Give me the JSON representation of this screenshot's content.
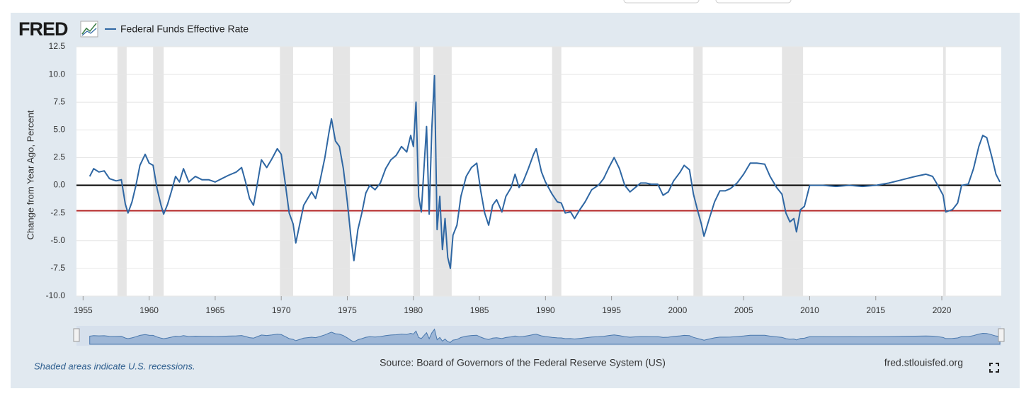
{
  "chart_data": {
    "type": "line",
    "logo": "FRED",
    "ylabel": "Change from Year Ago, Percent",
    "source": "Source: Board of Governors of the Federal Reserve System (US)",
    "note": "Shaded areas indicate U.S. recessions.",
    "site": "fred.stlouisfed.org",
    "xlim": [
      1954.5,
      2024.5
    ],
    "xticks": [
      1955,
      1960,
      1965,
      1970,
      1975,
      1980,
      1985,
      1990,
      1995,
      2000,
      2005,
      2010,
      2015,
      2020
    ],
    "ylim": [
      -10,
      12.5
    ],
    "yticks": [
      12.5,
      {
        "value": 10,
        "label": "10.0"
      },
      7.5,
      {
        "value": 5,
        "label": "5.0"
      },
      2.5,
      {
        "value": 0,
        "label": "0.0"
      },
      -2.5,
      {
        "value": -5,
        "label": "-5.0"
      },
      -7.5,
      {
        "value": -10,
        "label": "-10.0"
      }
    ],
    "grid": true,
    "recessions": [
      [
        1957.6,
        1958.3
      ],
      [
        1960.3,
        1961.1
      ],
      [
        1969.9,
        1970.9
      ],
      [
        1973.9,
        1975.2
      ],
      [
        1980.0,
        1980.5
      ],
      [
        1981.5,
        1982.9
      ],
      [
        1990.5,
        1991.2
      ],
      [
        2001.2,
        2001.9
      ],
      [
        2007.9,
        2009.5
      ],
      [
        2020.1,
        2020.3
      ]
    ],
    "reference_lines": [
      {
        "value": 0,
        "color": "#000000"
      },
      {
        "value": -2.3,
        "color": "#b22222"
      }
    ],
    "x": [
      1955.5,
      1955.8,
      1956.2,
      1956.6,
      1957,
      1957.5,
      1957.9,
      1958.2,
      1958.4,
      1958.7,
      1959,
      1959.3,
      1959.7,
      1960,
      1960.3,
      1960.6,
      1960.9,
      1961.1,
      1961.4,
      1961.7,
      1962,
      1962.3,
      1962.6,
      1963,
      1963.5,
      1964,
      1964.5,
      1965,
      1965.5,
      1966,
      1966.6,
      1967,
      1967.3,
      1967.6,
      1967.9,
      1968.2,
      1968.5,
      1968.9,
      1969.3,
      1969.7,
      1970,
      1970.3,
      1970.6,
      1970.9,
      1971.1,
      1971.4,
      1971.7,
      1972,
      1972.3,
      1972.6,
      1972.9,
      1973.3,
      1973.6,
      1973.8,
      1974.1,
      1974.4,
      1974.7,
      1975,
      1975.3,
      1975.5,
      1975.8,
      1976.1,
      1976.4,
      1976.7,
      1977.1,
      1977.5,
      1977.9,
      1978.3,
      1978.7,
      1979.1,
      1979.5,
      1979.8,
      1980,
      1980.2,
      1980.4,
      1980.6,
      1980.8,
      1981,
      1981.2,
      1981.4,
      1981.6,
      1981.8,
      1982,
      1982.2,
      1982.4,
      1982.6,
      1982.8,
      1983,
      1983.3,
      1983.6,
      1984,
      1984.4,
      1984.8,
      1985.1,
      1985.4,
      1985.7,
      1986,
      1986.3,
      1986.7,
      1987,
      1987.4,
      1987.7,
      1988,
      1988.3,
      1988.7,
      1989.1,
      1989.3,
      1989.7,
      1990,
      1990.5,
      1990.9,
      1991.2,
      1991.5,
      1991.9,
      1992.2,
      1992.6,
      1993,
      1993.5,
      1994,
      1994.4,
      1994.8,
      1995.2,
      1995.6,
      1996,
      1996.4,
      1996.8,
      1997.2,
      1997.6,
      1998,
      1998.5,
      1998.9,
      1999.3,
      1999.7,
      2000.2,
      2000.5,
      2000.9,
      2001.2,
      2001.5,
      2001.8,
      2002,
      2002.4,
      2002.8,
      2003.2,
      2003.6,
      2004,
      2004.5,
      2005,
      2005.5,
      2006,
      2006.6,
      2007,
      2007.5,
      2007.9,
      2008.2,
      2008.5,
      2008.8,
      2009,
      2009.3,
      2009.6,
      2010,
      2011,
      2012,
      2013,
      2014,
      2015,
      2016,
      2017,
      2018,
      2018.8,
      2019.3,
      2019.7,
      2020.1,
      2020.3,
      2020.8,
      2021.2,
      2021.5,
      2022,
      2022.4,
      2022.8,
      2023.1,
      2023.4,
      2023.8,
      2024.1,
      2024.4
    ],
    "series": [
      {
        "name": "Federal Funds Effective Rate",
        "color": "#2f67a3",
        "values": [
          0.8,
          1.5,
          1.2,
          1.3,
          0.6,
          0.4,
          0.5,
          -1.7,
          -2.5,
          -1.5,
          0,
          1.8,
          2.8,
          2.0,
          1.8,
          -0.3,
          -1.8,
          -2.6,
          -1.7,
          -0.5,
          0.8,
          0.3,
          1.5,
          0.3,
          0.8,
          0.5,
          0.5,
          0.3,
          0.6,
          0.9,
          1.2,
          1.6,
          0.3,
          -1.2,
          -1.8,
          0.2,
          2.3,
          1.6,
          2.4,
          3.3,
          2.8,
          0.2,
          -2.5,
          -3.5,
          -5.2,
          -3.5,
          -1.8,
          -1.2,
          -0.6,
          -1.2,
          0.2,
          2.5,
          4.7,
          6.0,
          4.0,
          3.5,
          1.5,
          -1.5,
          -5.0,
          -6.8,
          -4.0,
          -2.5,
          -0.7,
          0,
          -0.4,
          0.2,
          1.5,
          2.3,
          2.7,
          3.5,
          3.0,
          4.5,
          3.5,
          7.5,
          -1.0,
          -2.4,
          1.5,
          5.3,
          -2.6,
          5.2,
          9.9,
          -4.0,
          -1.0,
          -5.8,
          -3.0,
          -6.5,
          -7.5,
          -4.5,
          -3.6,
          -1.0,
          0.8,
          1.6,
          2.0,
          -0.5,
          -2.5,
          -3.6,
          -1.8,
          -1.3,
          -2.4,
          -1.0,
          -0.2,
          1.0,
          -0.2,
          0.3,
          1.5,
          2.8,
          3.3,
          1.2,
          0.3,
          -0.8,
          -1.5,
          -1.6,
          -2.5,
          -2.4,
          -3.0,
          -2.2,
          -1.5,
          -0.4,
          0,
          0.6,
          1.6,
          2.5,
          1.5,
          0,
          -0.6,
          -0.2,
          0.2,
          0.2,
          0.1,
          0.1,
          -0.9,
          -0.6,
          0.4,
          1.2,
          1.8,
          1.4,
          -0.8,
          -2.2,
          -3.5,
          -4.6,
          -3.0,
          -1.5,
          -0.5,
          -0.5,
          -0.3,
          0.2,
          1.0,
          2.0,
          2.0,
          1.9,
          0.8,
          -0.2,
          -0.8,
          -2.5,
          -3.3,
          -3.0,
          -4.2,
          -2.2,
          -1.9,
          0,
          0,
          -0.1,
          0,
          -0.1,
          0,
          0.2,
          0.5,
          0.8,
          1.0,
          0.8,
          0,
          -0.9,
          -2.4,
          -2.2,
          -1.6,
          0,
          0.1,
          1.5,
          3.5,
          4.5,
          4.3,
          2.5,
          1.0,
          0.3
        ]
      }
    ]
  }
}
